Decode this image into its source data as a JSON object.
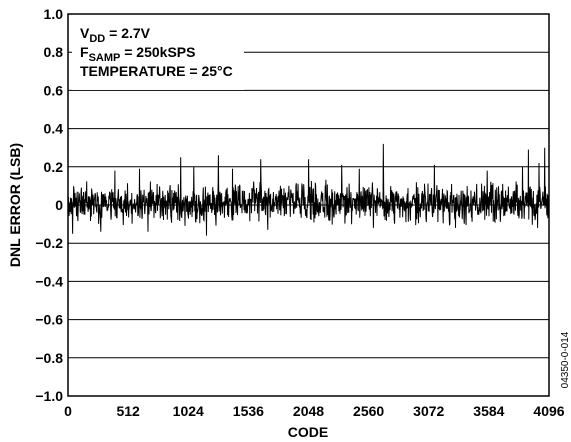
{
  "chart_data": {
    "type": "line",
    "title": "",
    "xlabel": "CODE",
    "ylabel": "DNL ERROR (LSB)",
    "xlim": [
      0,
      4096
    ],
    "ylim": [
      -1.0,
      1.0
    ],
    "grid": "horizontal",
    "x_ticks": [
      0,
      512,
      1024,
      1536,
      2048,
      2560,
      3072,
      3584,
      4096
    ],
    "x_tick_labels": [
      "0",
      "512",
      "1024",
      "1536",
      "2048",
      "2560",
      "3072",
      "3584",
      "4096"
    ],
    "y_ticks": [
      1.0,
      0.8,
      0.6,
      0.4,
      0.2,
      0,
      -0.2,
      -0.4,
      -0.6,
      -0.8,
      -1.0
    ],
    "y_tick_labels": [
      "1.0",
      "0.8",
      "0.6",
      "0.4",
      "0.2",
      "0",
      "−0.2",
      "−0.4",
      "−0.6",
      "−0.8",
      "−1.0"
    ],
    "annotations": {
      "vdd_main": "V",
      "vdd_sub": "DD",
      "vdd_value": " = 2.7V",
      "fsamp_main": "F",
      "fsamp_sub": "SAMP",
      "fsamp_value": " = 250kSPS",
      "temperature": "TEMPERATURE = 25°C"
    },
    "figure_id": "04350-0-014",
    "series": [
      {
        "line_color": "#000000",
        "noise_band": [
          -0.1,
          0.12
        ],
        "peaks": [
          {
            "x": 400,
            "y": 0.18
          },
          {
            "x": 610,
            "y": 0.19
          },
          {
            "x": 960,
            "y": 0.25
          },
          {
            "x": 1070,
            "y": 0.2
          },
          {
            "x": 1280,
            "y": 0.26
          },
          {
            "x": 1400,
            "y": 0.19
          },
          {
            "x": 1640,
            "y": 0.24
          },
          {
            "x": 2050,
            "y": 0.24
          },
          {
            "x": 2330,
            "y": 0.21
          },
          {
            "x": 2480,
            "y": 0.19
          },
          {
            "x": 2685,
            "y": 0.32
          },
          {
            "x": 3120,
            "y": 0.21
          },
          {
            "x": 3570,
            "y": 0.18
          },
          {
            "x": 3870,
            "y": 0.2
          },
          {
            "x": 3920,
            "y": 0.29
          },
          {
            "x": 4010,
            "y": 0.22
          },
          {
            "x": 4060,
            "y": 0.3
          }
        ],
        "troughs": [
          {
            "x": 40,
            "y": -0.15
          },
          {
            "x": 280,
            "y": -0.14
          },
          {
            "x": 680,
            "y": -0.14
          },
          {
            "x": 1180,
            "y": -0.16
          },
          {
            "x": 1700,
            "y": -0.13
          },
          {
            "x": 2600,
            "y": -0.12
          },
          {
            "x": 3300,
            "y": -0.12
          },
          {
            "x": 4000,
            "y": -0.12
          }
        ]
      }
    ]
  }
}
